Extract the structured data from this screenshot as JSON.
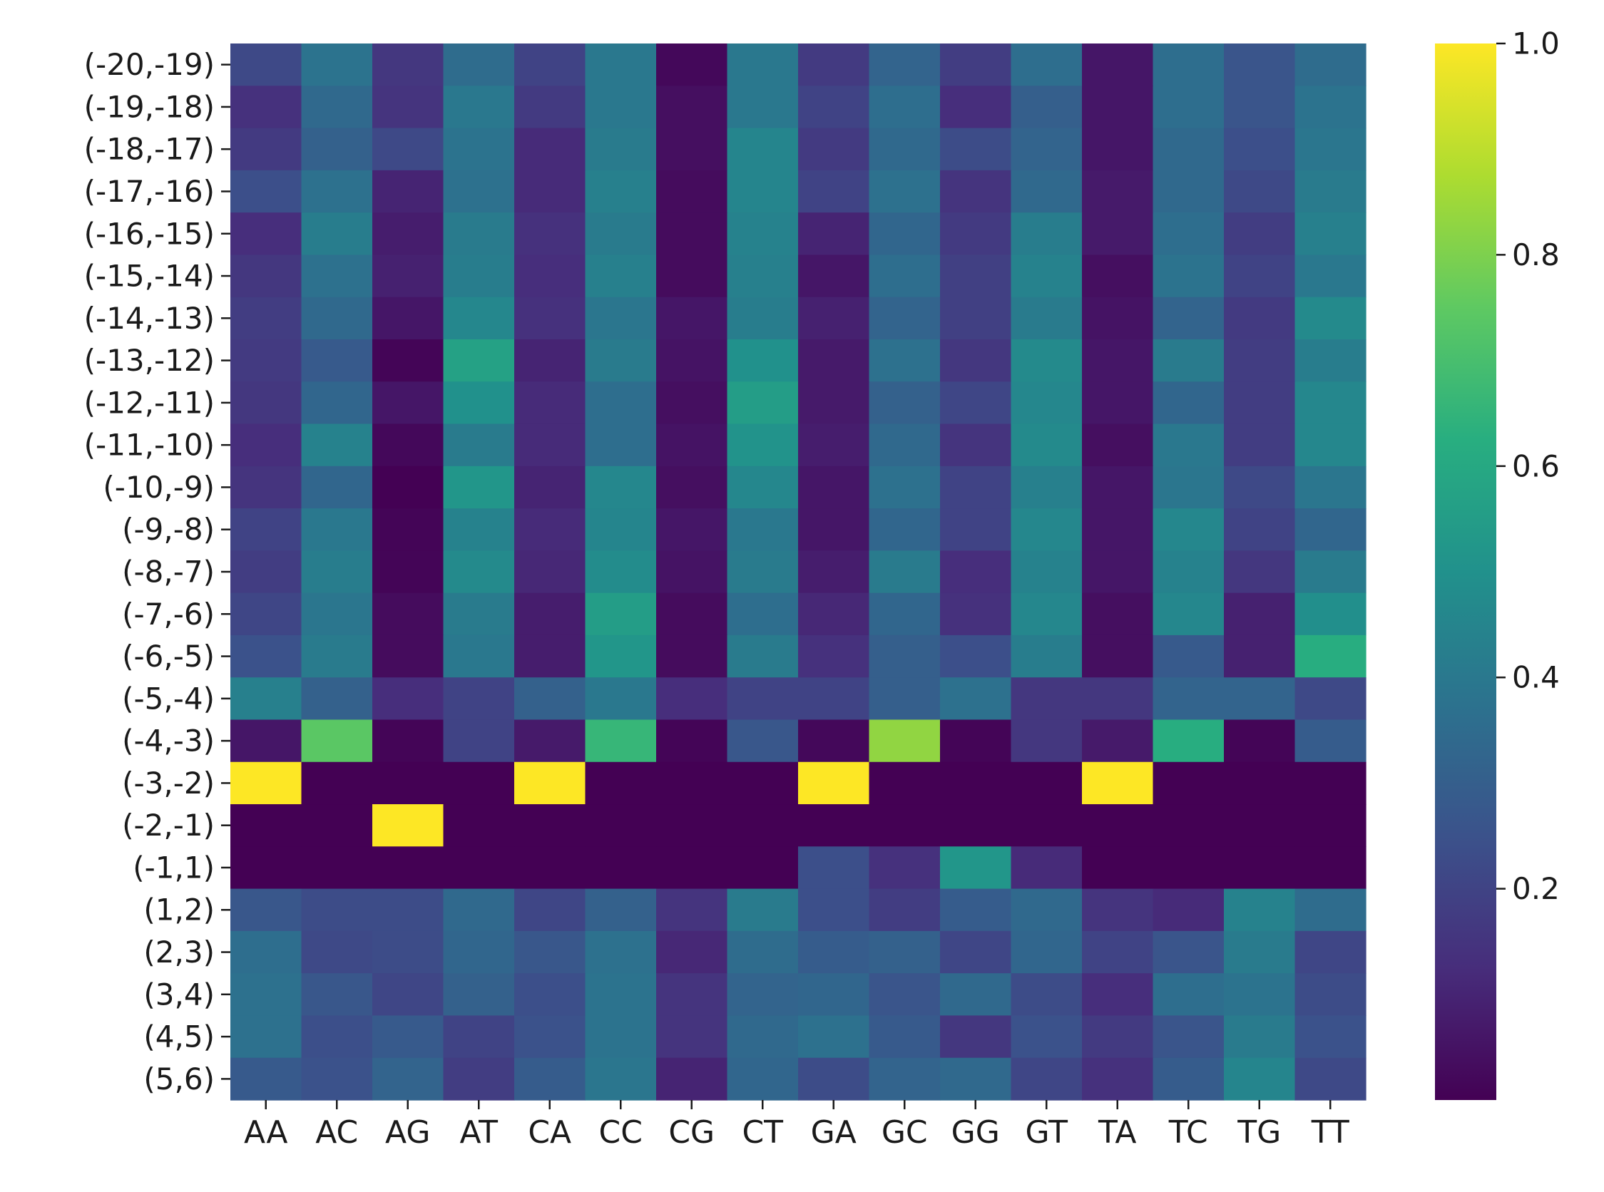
{
  "chart_data": {
    "type": "heatmap",
    "title": "",
    "xlabel": "",
    "ylabel": "",
    "colormap": "viridis",
    "colorbar": {
      "min": 0.0,
      "max": 1.0,
      "ticks": [
        0.2,
        0.4,
        0.6,
        0.8,
        1.0
      ],
      "tick_labels": [
        "0.2",
        "0.4",
        "0.6",
        "0.8",
        "1.0"
      ]
    },
    "x_categories": [
      "AA",
      "AC",
      "AG",
      "AT",
      "CA",
      "CC",
      "CG",
      "CT",
      "GA",
      "GC",
      "GG",
      "GT",
      "TA",
      "TC",
      "TG",
      "TT"
    ],
    "y_categories": [
      "(-20,-19)",
      "(-19,-18)",
      "(-18,-17)",
      "(-17,-16)",
      "(-16,-15)",
      "(-15,-14)",
      "(-14,-13)",
      "(-13,-12)",
      "(-12,-11)",
      "(-11,-10)",
      "(-10,-9)",
      "(-9,-8)",
      "(-8,-7)",
      "(-7,-6)",
      "(-6,-5)",
      "(-5,-4)",
      "(-4,-3)",
      "(-3,-2)",
      "(-2,-1)",
      "(-1,1)",
      "(1,2)",
      "(2,3)",
      "(3,4)",
      "(4,5)",
      "(5,6)"
    ],
    "values": [
      [
        0.22,
        0.38,
        0.16,
        0.35,
        0.2,
        0.4,
        0.02,
        0.4,
        0.17,
        0.32,
        0.18,
        0.36,
        0.06,
        0.36,
        0.26,
        0.35
      ],
      [
        0.14,
        0.34,
        0.15,
        0.4,
        0.17,
        0.4,
        0.04,
        0.4,
        0.2,
        0.36,
        0.13,
        0.3,
        0.06,
        0.36,
        0.26,
        0.38
      ],
      [
        0.17,
        0.31,
        0.22,
        0.38,
        0.12,
        0.41,
        0.04,
        0.45,
        0.17,
        0.34,
        0.23,
        0.32,
        0.06,
        0.34,
        0.24,
        0.39
      ],
      [
        0.24,
        0.37,
        0.1,
        0.37,
        0.12,
        0.43,
        0.03,
        0.45,
        0.2,
        0.37,
        0.15,
        0.34,
        0.07,
        0.34,
        0.22,
        0.41
      ],
      [
        0.13,
        0.42,
        0.08,
        0.41,
        0.14,
        0.41,
        0.03,
        0.44,
        0.1,
        0.33,
        0.17,
        0.42,
        0.07,
        0.36,
        0.18,
        0.43
      ],
      [
        0.16,
        0.37,
        0.09,
        0.42,
        0.13,
        0.43,
        0.03,
        0.43,
        0.06,
        0.36,
        0.19,
        0.44,
        0.04,
        0.38,
        0.2,
        0.4
      ],
      [
        0.18,
        0.34,
        0.06,
        0.46,
        0.14,
        0.39,
        0.06,
        0.42,
        0.09,
        0.32,
        0.19,
        0.41,
        0.05,
        0.32,
        0.17,
        0.47
      ],
      [
        0.17,
        0.28,
        0.01,
        0.57,
        0.1,
        0.41,
        0.05,
        0.5,
        0.07,
        0.37,
        0.16,
        0.47,
        0.06,
        0.41,
        0.18,
        0.42
      ],
      [
        0.16,
        0.33,
        0.06,
        0.5,
        0.12,
        0.36,
        0.04,
        0.55,
        0.07,
        0.31,
        0.21,
        0.46,
        0.06,
        0.33,
        0.18,
        0.46
      ],
      [
        0.13,
        0.44,
        0.02,
        0.41,
        0.12,
        0.36,
        0.05,
        0.51,
        0.08,
        0.34,
        0.15,
        0.47,
        0.04,
        0.4,
        0.18,
        0.46
      ],
      [
        0.15,
        0.33,
        0.0,
        0.52,
        0.1,
        0.46,
        0.04,
        0.46,
        0.06,
        0.37,
        0.2,
        0.43,
        0.06,
        0.39,
        0.22,
        0.39
      ],
      [
        0.2,
        0.4,
        0.01,
        0.44,
        0.12,
        0.45,
        0.06,
        0.4,
        0.06,
        0.33,
        0.2,
        0.46,
        0.06,
        0.46,
        0.2,
        0.33
      ],
      [
        0.18,
        0.42,
        0.01,
        0.47,
        0.11,
        0.48,
        0.05,
        0.41,
        0.08,
        0.41,
        0.13,
        0.44,
        0.06,
        0.44,
        0.16,
        0.41
      ],
      [
        0.21,
        0.39,
        0.03,
        0.41,
        0.08,
        0.55,
        0.03,
        0.36,
        0.11,
        0.33,
        0.14,
        0.46,
        0.04,
        0.46,
        0.09,
        0.49
      ],
      [
        0.25,
        0.41,
        0.03,
        0.4,
        0.08,
        0.52,
        0.03,
        0.41,
        0.14,
        0.3,
        0.24,
        0.42,
        0.04,
        0.28,
        0.09,
        0.62
      ],
      [
        0.43,
        0.31,
        0.13,
        0.2,
        0.31,
        0.4,
        0.13,
        0.2,
        0.2,
        0.3,
        0.37,
        0.16,
        0.16,
        0.32,
        0.32,
        0.22
      ],
      [
        0.06,
        0.74,
        0.01,
        0.2,
        0.07,
        0.66,
        0.01,
        0.27,
        0.02,
        0.83,
        0.01,
        0.16,
        0.07,
        0.62,
        0.01,
        0.29
      ],
      [
        1.0,
        0.0,
        0.0,
        0.0,
        1.0,
        0.0,
        0.0,
        0.0,
        1.0,
        0.0,
        0.0,
        0.0,
        1.0,
        0.0,
        0.0,
        0.0
      ],
      [
        0.0,
        0.0,
        1.0,
        0.0,
        0.0,
        0.0,
        0.0,
        0.0,
        0.0,
        0.0,
        0.0,
        0.0,
        0.0,
        0.0,
        0.0,
        0.0
      ],
      [
        0.0,
        0.0,
        0.0,
        0.0,
        0.0,
        0.0,
        0.0,
        0.0,
        0.24,
        0.14,
        0.52,
        0.12,
        0.0,
        0.0,
        0.0,
        0.0
      ],
      [
        0.27,
        0.23,
        0.23,
        0.34,
        0.21,
        0.31,
        0.15,
        0.41,
        0.24,
        0.18,
        0.29,
        0.34,
        0.15,
        0.12,
        0.44,
        0.35
      ],
      [
        0.36,
        0.22,
        0.23,
        0.33,
        0.27,
        0.37,
        0.11,
        0.35,
        0.29,
        0.31,
        0.21,
        0.33,
        0.2,
        0.26,
        0.41,
        0.21
      ],
      [
        0.37,
        0.27,
        0.21,
        0.31,
        0.24,
        0.38,
        0.15,
        0.32,
        0.33,
        0.26,
        0.34,
        0.23,
        0.13,
        0.36,
        0.38,
        0.23
      ],
      [
        0.37,
        0.24,
        0.28,
        0.2,
        0.25,
        0.38,
        0.15,
        0.34,
        0.37,
        0.28,
        0.16,
        0.25,
        0.17,
        0.26,
        0.41,
        0.25
      ],
      [
        0.28,
        0.25,
        0.32,
        0.18,
        0.29,
        0.39,
        0.1,
        0.33,
        0.23,
        0.32,
        0.34,
        0.21,
        0.14,
        0.29,
        0.45,
        0.22
      ]
    ]
  }
}
